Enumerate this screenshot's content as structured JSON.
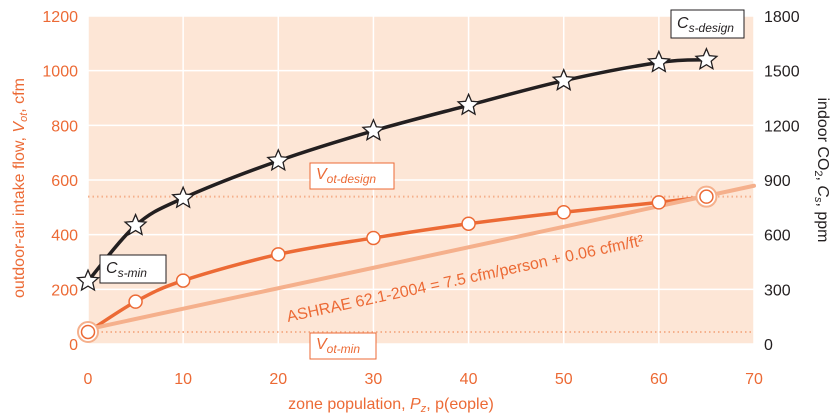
{
  "colors": {
    "plot_bg": "#fde6d6",
    "grid": "#ffffff",
    "orange": "#ec6a35",
    "orange_light": "#f5b08c",
    "black": "#231f20",
    "tick_left": "#ec6a35",
    "tick_right": "#231f20"
  },
  "chart_data": {
    "type": "line",
    "title": "",
    "xlabel": "zone population, Pz, p(eople)",
    "ylabel_left": "outdoor-air intake flow, Vot, cfm",
    "ylabel_right": "indoor CO2, Cs, ppm",
    "xlim": [
      0,
      70
    ],
    "ylim_left": [
      0,
      1200
    ],
    "ylim_right": [
      0,
      1800
    ],
    "grid": true,
    "x_ticks": [
      0,
      10,
      20,
      30,
      40,
      50,
      60,
      70
    ],
    "y_ticks_left": [
      0,
      200,
      400,
      600,
      800,
      1000,
      1200
    ],
    "y_ticks_right": [
      0,
      300,
      600,
      900,
      1200,
      1500,
      1800
    ],
    "series": [
      {
        "name": "Vot",
        "axis": "left",
        "marker": "circle",
        "x": [
          0,
          5,
          10,
          20,
          30,
          40,
          50,
          60,
          65
        ],
        "y": [
          44,
          155,
          232,
          328,
          388,
          440,
          482,
          518,
          539
        ]
      },
      {
        "name": "Cs",
        "axis": "right",
        "marker": "star",
        "x": [
          0,
          5,
          10,
          20,
          30,
          40,
          50,
          60,
          65
        ],
        "y": [
          345,
          650,
          800,
          1005,
          1170,
          1310,
          1445,
          1545,
          1560
        ]
      },
      {
        "name": "ASHRAE 62.1-2004",
        "axis": "left",
        "marker": "none",
        "x": [
          0,
          70
        ],
        "y": [
          54,
          579
        ]
      }
    ],
    "reference_lines": [
      {
        "label": "Vot-design",
        "axis": "left",
        "y": 539
      },
      {
        "label": "Vot-min",
        "axis": "left",
        "y": 44
      }
    ],
    "annotations": {
      "cs_design": {
        "main": "C",
        "sub": "s-design"
      },
      "cs_min": {
        "main": "C",
        "sub": "s-min"
      },
      "vot_design": {
        "main": "V",
        "sub": "ot-design"
      },
      "vot_min": {
        "main": "V",
        "sub": "ot-min"
      },
      "ashrae": "ASHRAE 62.1-2004 = 7.5 cfm/person + 0.06 cfm/ft²"
    },
    "axis_title_parts": {
      "x_a": "zone population, ",
      "x_b": "P",
      "x_c": "z",
      "x_d": ", p(eople)",
      "yl_a": "outdoor-air intake flow, ",
      "yl_b": "V",
      "yl_c": "ot",
      "yl_d": ", cfm",
      "yr_a": "indoor CO",
      "yr_b": "2",
      "yr_c": ", ",
      "yr_d": "C",
      "yr_e": "s",
      "yr_f": ", ppm"
    }
  }
}
